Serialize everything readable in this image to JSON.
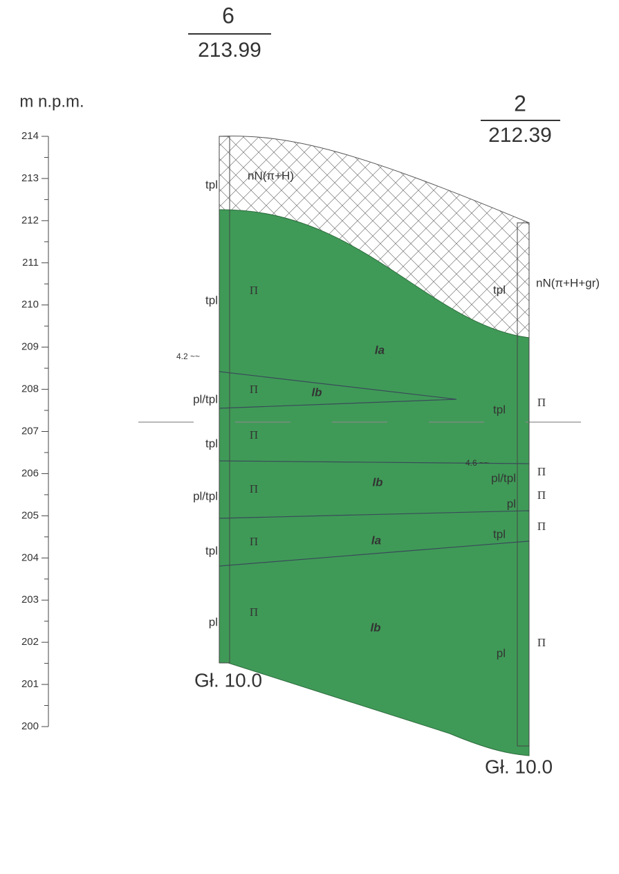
{
  "axis": {
    "label": "m n.p.m.",
    "ticks": [
      214,
      213,
      212,
      211,
      210,
      209,
      208,
      207,
      206,
      205,
      204,
      203,
      202,
      201,
      200
    ]
  },
  "boreholes": [
    {
      "number": "6",
      "elevation": "213.99",
      "depth": "Gł. 10.0"
    },
    {
      "number": "2",
      "elevation": "212.39",
      "depth": "Gł. 10.0"
    }
  ],
  "labels": [
    "tpl",
    "tpl",
    "pl/tpl",
    "tpl",
    "pl/tpl",
    "tpl",
    "pl",
    "Π",
    "Π",
    "Π",
    "Π",
    "Π",
    "Π",
    "nN(π+H)",
    "la",
    "lb",
    "lb",
    "la",
    "lb",
    "4.2 ~~",
    "tpl",
    "nN(π+H+gr)",
    "tpl",
    "Π",
    "4.6 ~~",
    "pl/tpl",
    "Π",
    "pl",
    "Π",
    "tpl",
    "Π",
    "pl",
    "Π"
  ]
}
